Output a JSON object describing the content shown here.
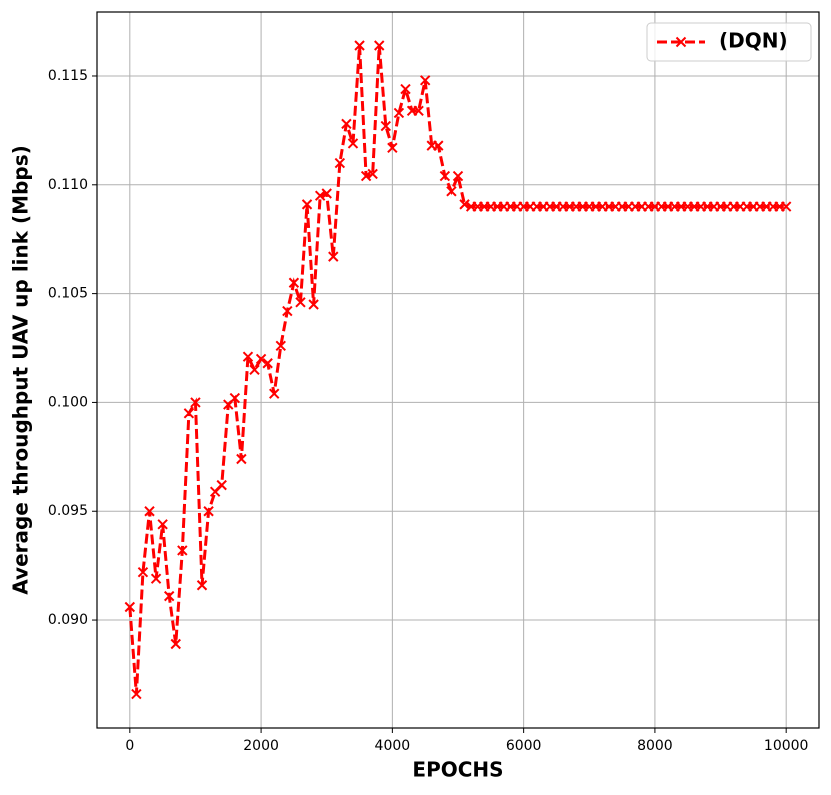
{
  "chart_data": {
    "type": "line",
    "xlabel": "EPOCHS",
    "ylabel": "Average throughput UAV up link (Mbps)",
    "x": [
      0,
      100,
      200,
      300,
      400,
      500,
      600,
      700,
      800,
      900,
      1000,
      1100,
      1200,
      1300,
      1400,
      1500,
      1600,
      1700,
      1800,
      1900,
      2000,
      2100,
      2200,
      2300,
      2400,
      2500,
      2600,
      2700,
      2800,
      2900,
      3000,
      3100,
      3200,
      3300,
      3400,
      3500,
      3600,
      3700,
      3800,
      3900,
      4000,
      4100,
      4200,
      4300,
      4400,
      4500,
      4600,
      4700,
      4800,
      4900,
      5000,
      5100,
      5200,
      5300,
      5400,
      5500,
      5600,
      5700,
      5800,
      5900,
      6000,
      6100,
      6200,
      6300,
      6400,
      6500,
      6600,
      6700,
      6800,
      6900,
      7000,
      7100,
      7200,
      7300,
      7400,
      7500,
      7600,
      7700,
      7800,
      7900,
      8000,
      8100,
      8200,
      8300,
      8400,
      8500,
      8600,
      8700,
      8800,
      8900,
      9000,
      9100,
      9200,
      9300,
      9400,
      9500,
      9600,
      9700,
      9800,
      9900,
      10000
    ],
    "series": [
      {
        "name": "(DQN)",
        "color": "#ff0000",
        "values": [
          0.0906,
          0.0866,
          0.0922,
          0.095,
          0.0919,
          0.0944,
          0.0911,
          0.0889,
          0.0932,
          0.0995,
          0.1,
          0.0916,
          0.095,
          0.0959,
          0.0962,
          0.0999,
          0.1002,
          0.0974,
          0.1021,
          0.1015,
          0.102,
          0.1018,
          0.1004,
          0.1026,
          0.1042,
          0.1055,
          0.1046,
          0.1091,
          0.1045,
          0.1095,
          0.1096,
          0.1067,
          0.111,
          0.1128,
          0.1119,
          0.1164,
          0.1104,
          0.1105,
          0.1164,
          0.1127,
          0.1117,
          0.1133,
          0.1144,
          0.1134,
          0.1134,
          0.1148,
          0.1118,
          0.1118,
          0.1104,
          0.1097,
          0.1104,
          0.1091,
          0.109,
          0.109,
          0.109,
          0.109,
          0.109,
          0.109,
          0.109,
          0.109,
          0.109,
          0.109,
          0.109,
          0.109,
          0.109,
          0.109,
          0.109,
          0.109,
          0.109,
          0.109,
          0.109,
          0.109,
          0.109,
          0.109,
          0.109,
          0.109,
          0.109,
          0.109,
          0.109,
          0.109,
          0.109,
          0.109,
          0.109,
          0.109,
          0.109,
          0.109,
          0.109,
          0.109,
          0.109,
          0.109,
          0.109,
          0.109,
          0.109,
          0.109,
          0.109,
          0.109,
          0.109,
          0.109,
          0.109,
          0.109,
          0.109
        ]
      }
    ],
    "xlim": [
      -500,
      10500
    ],
    "ylim": [
      0.08504,
      0.11794
    ],
    "xticks": [
      0,
      2000,
      4000,
      6000,
      8000,
      10000
    ],
    "yticks": [
      {
        "value": 0.09,
        "label": "0.090"
      },
      0.095,
      {
        "value": 0.1,
        "label": "0.100"
      },
      0.105,
      {
        "value": 0.11,
        "label": "0.110"
      },
      0.115
    ],
    "grid": true,
    "legend": "upper right"
  }
}
